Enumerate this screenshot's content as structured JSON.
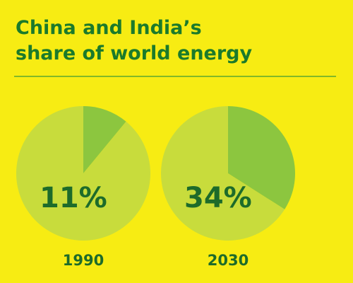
{
  "title": [
    "China and India’s",
    "share of world energy"
  ],
  "chart_data": [
    {
      "type": "pie",
      "label": "1990",
      "values": [
        11,
        89
      ],
      "value_labels": [
        "11%",
        null
      ],
      "colors": [
        "#8cc63f",
        "#c8dc3c"
      ]
    },
    {
      "type": "pie",
      "label": "2030",
      "values": [
        34,
        66
      ],
      "value_labels": [
        "34%",
        null
      ],
      "colors": [
        "#8cc63f",
        "#c8dc3c"
      ]
    }
  ]
}
